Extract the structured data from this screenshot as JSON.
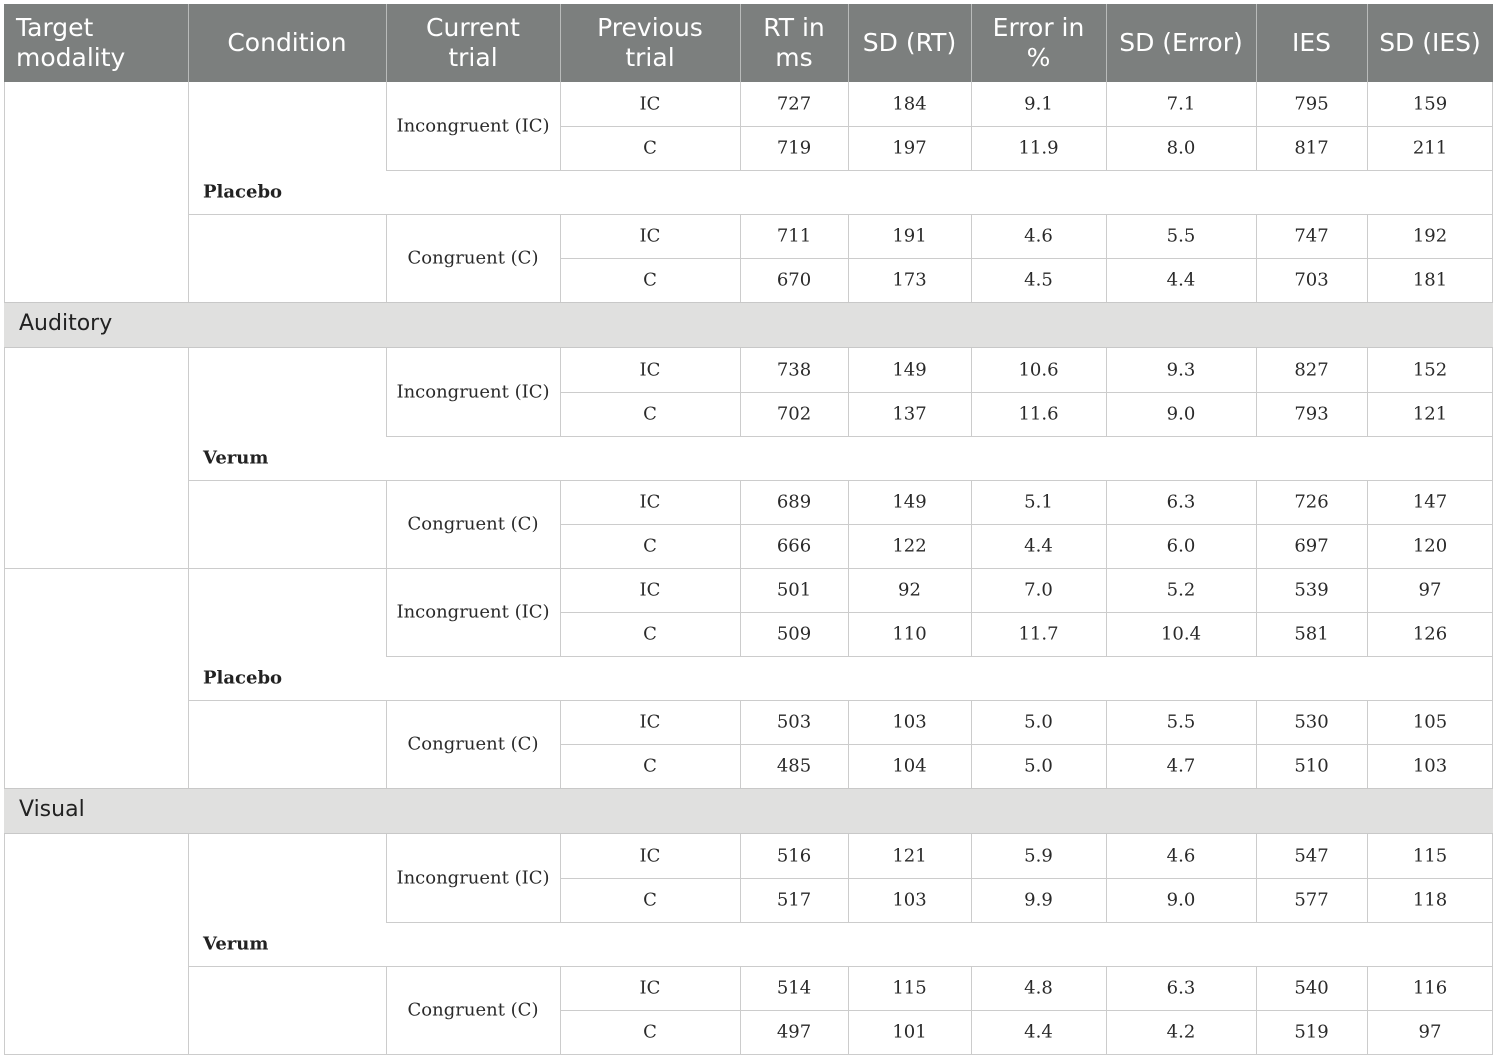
{
  "header": {
    "target_modality": "Target\nmodality",
    "condition": "Condition",
    "current_trial": "Current\ntrial",
    "previous_trial": "Previous\ntrial",
    "rt": "RT in\nms",
    "sd_rt": "SD (RT)",
    "error": "Error in\n%",
    "sd_error": "SD (Error)",
    "ies": "IES",
    "sd_ies": "SD (IES)"
  },
  "sections": [
    {
      "name": "Auditory",
      "conditions": [
        {
          "name": "Placebo",
          "trials": [
            {
              "current": "Incongruent (IC)",
              "rows": [
                {
                  "previous": "IC",
                  "rt": "727",
                  "sd_rt": "184",
                  "error": "9.1",
                  "sd_error": "7.1",
                  "ies": "795",
                  "sd_ies": "159"
                },
                {
                  "previous": "C",
                  "rt": "719",
                  "sd_rt": "197",
                  "error": "11.9",
                  "sd_error": "8.0",
                  "ies": "817",
                  "sd_ies": "211"
                }
              ]
            },
            {
              "current": "Congruent (C)",
              "rows": [
                {
                  "previous": "IC",
                  "rt": "711",
                  "sd_rt": "191",
                  "error": "4.6",
                  "sd_error": "5.5",
                  "ies": "747",
                  "sd_ies": "192"
                },
                {
                  "previous": "C",
                  "rt": "670",
                  "sd_rt": "173",
                  "error": "4.5",
                  "sd_error": "4.4",
                  "ies": "703",
                  "sd_ies": "181"
                }
              ]
            }
          ]
        },
        {
          "name": "Verum",
          "trials": [
            {
              "current": "Incongruent (IC)",
              "rows": [
                {
                  "previous": "IC",
                  "rt": "738",
                  "sd_rt": "149",
                  "error": "10.6",
                  "sd_error": "9.3",
                  "ies": "827",
                  "sd_ies": "152"
                },
                {
                  "previous": "C",
                  "rt": "702",
                  "sd_rt": "137",
                  "error": "11.6",
                  "sd_error": "9.0",
                  "ies": "793",
                  "sd_ies": "121"
                }
              ]
            },
            {
              "current": "Congruent (C)",
              "rows": [
                {
                  "previous": "IC",
                  "rt": "689",
                  "sd_rt": "149",
                  "error": "5.1",
                  "sd_error": "6.3",
                  "ies": "726",
                  "sd_ies": "147"
                },
                {
                  "previous": "C",
                  "rt": "666",
                  "sd_rt": "122",
                  "error": "4.4",
                  "sd_error": "6.0",
                  "ies": "697",
                  "sd_ies": "120"
                }
              ]
            }
          ]
        }
      ]
    },
    {
      "name": "Visual",
      "conditions": [
        {
          "name": "Placebo",
          "trials": [
            {
              "current": "Incongruent (IC)",
              "rows": [
                {
                  "previous": "IC",
                  "rt": "501",
                  "sd_rt": "92",
                  "error": "7.0",
                  "sd_error": "5.2",
                  "ies": "539",
                  "sd_ies": "97"
                },
                {
                  "previous": "C",
                  "rt": "509",
                  "sd_rt": "110",
                  "error": "11.7",
                  "sd_error": "10.4",
                  "ies": "581",
                  "sd_ies": "126"
                }
              ]
            },
            {
              "current": "Congruent (C)",
              "rows": [
                {
                  "previous": "IC",
                  "rt": "503",
                  "sd_rt": "103",
                  "error": "5.0",
                  "sd_error": "5.5",
                  "ies": "530",
                  "sd_ies": "105"
                },
                {
                  "previous": "C",
                  "rt": "485",
                  "sd_rt": "104",
                  "error": "5.0",
                  "sd_error": "4.7",
                  "ies": "510",
                  "sd_ies": "103"
                }
              ]
            }
          ]
        },
        {
          "name": "Verum",
          "trials": [
            {
              "current": "Incongruent (IC)",
              "rows": [
                {
                  "previous": "IC",
                  "rt": "516",
                  "sd_rt": "121",
                  "error": "5.9",
                  "sd_error": "4.6",
                  "ies": "547",
                  "sd_ies": "115"
                },
                {
                  "previous": "C",
                  "rt": "517",
                  "sd_rt": "103",
                  "error": "9.9",
                  "sd_error": "9.0",
                  "ies": "577",
                  "sd_ies": "118"
                }
              ]
            },
            {
              "current": "Congruent (C)",
              "rows": [
                {
                  "previous": "IC",
                  "rt": "514",
                  "sd_rt": "115",
                  "error": "4.8",
                  "sd_error": "6.3",
                  "ies": "540",
                  "sd_ies": "116"
                },
                {
                  "previous": "C",
                  "rt": "497",
                  "sd_rt": "101",
                  "error": "4.4",
                  "sd_error": "4.2",
                  "ies": "519",
                  "sd_ies": "97"
                }
              ]
            }
          ]
        }
      ]
    }
  ]
}
